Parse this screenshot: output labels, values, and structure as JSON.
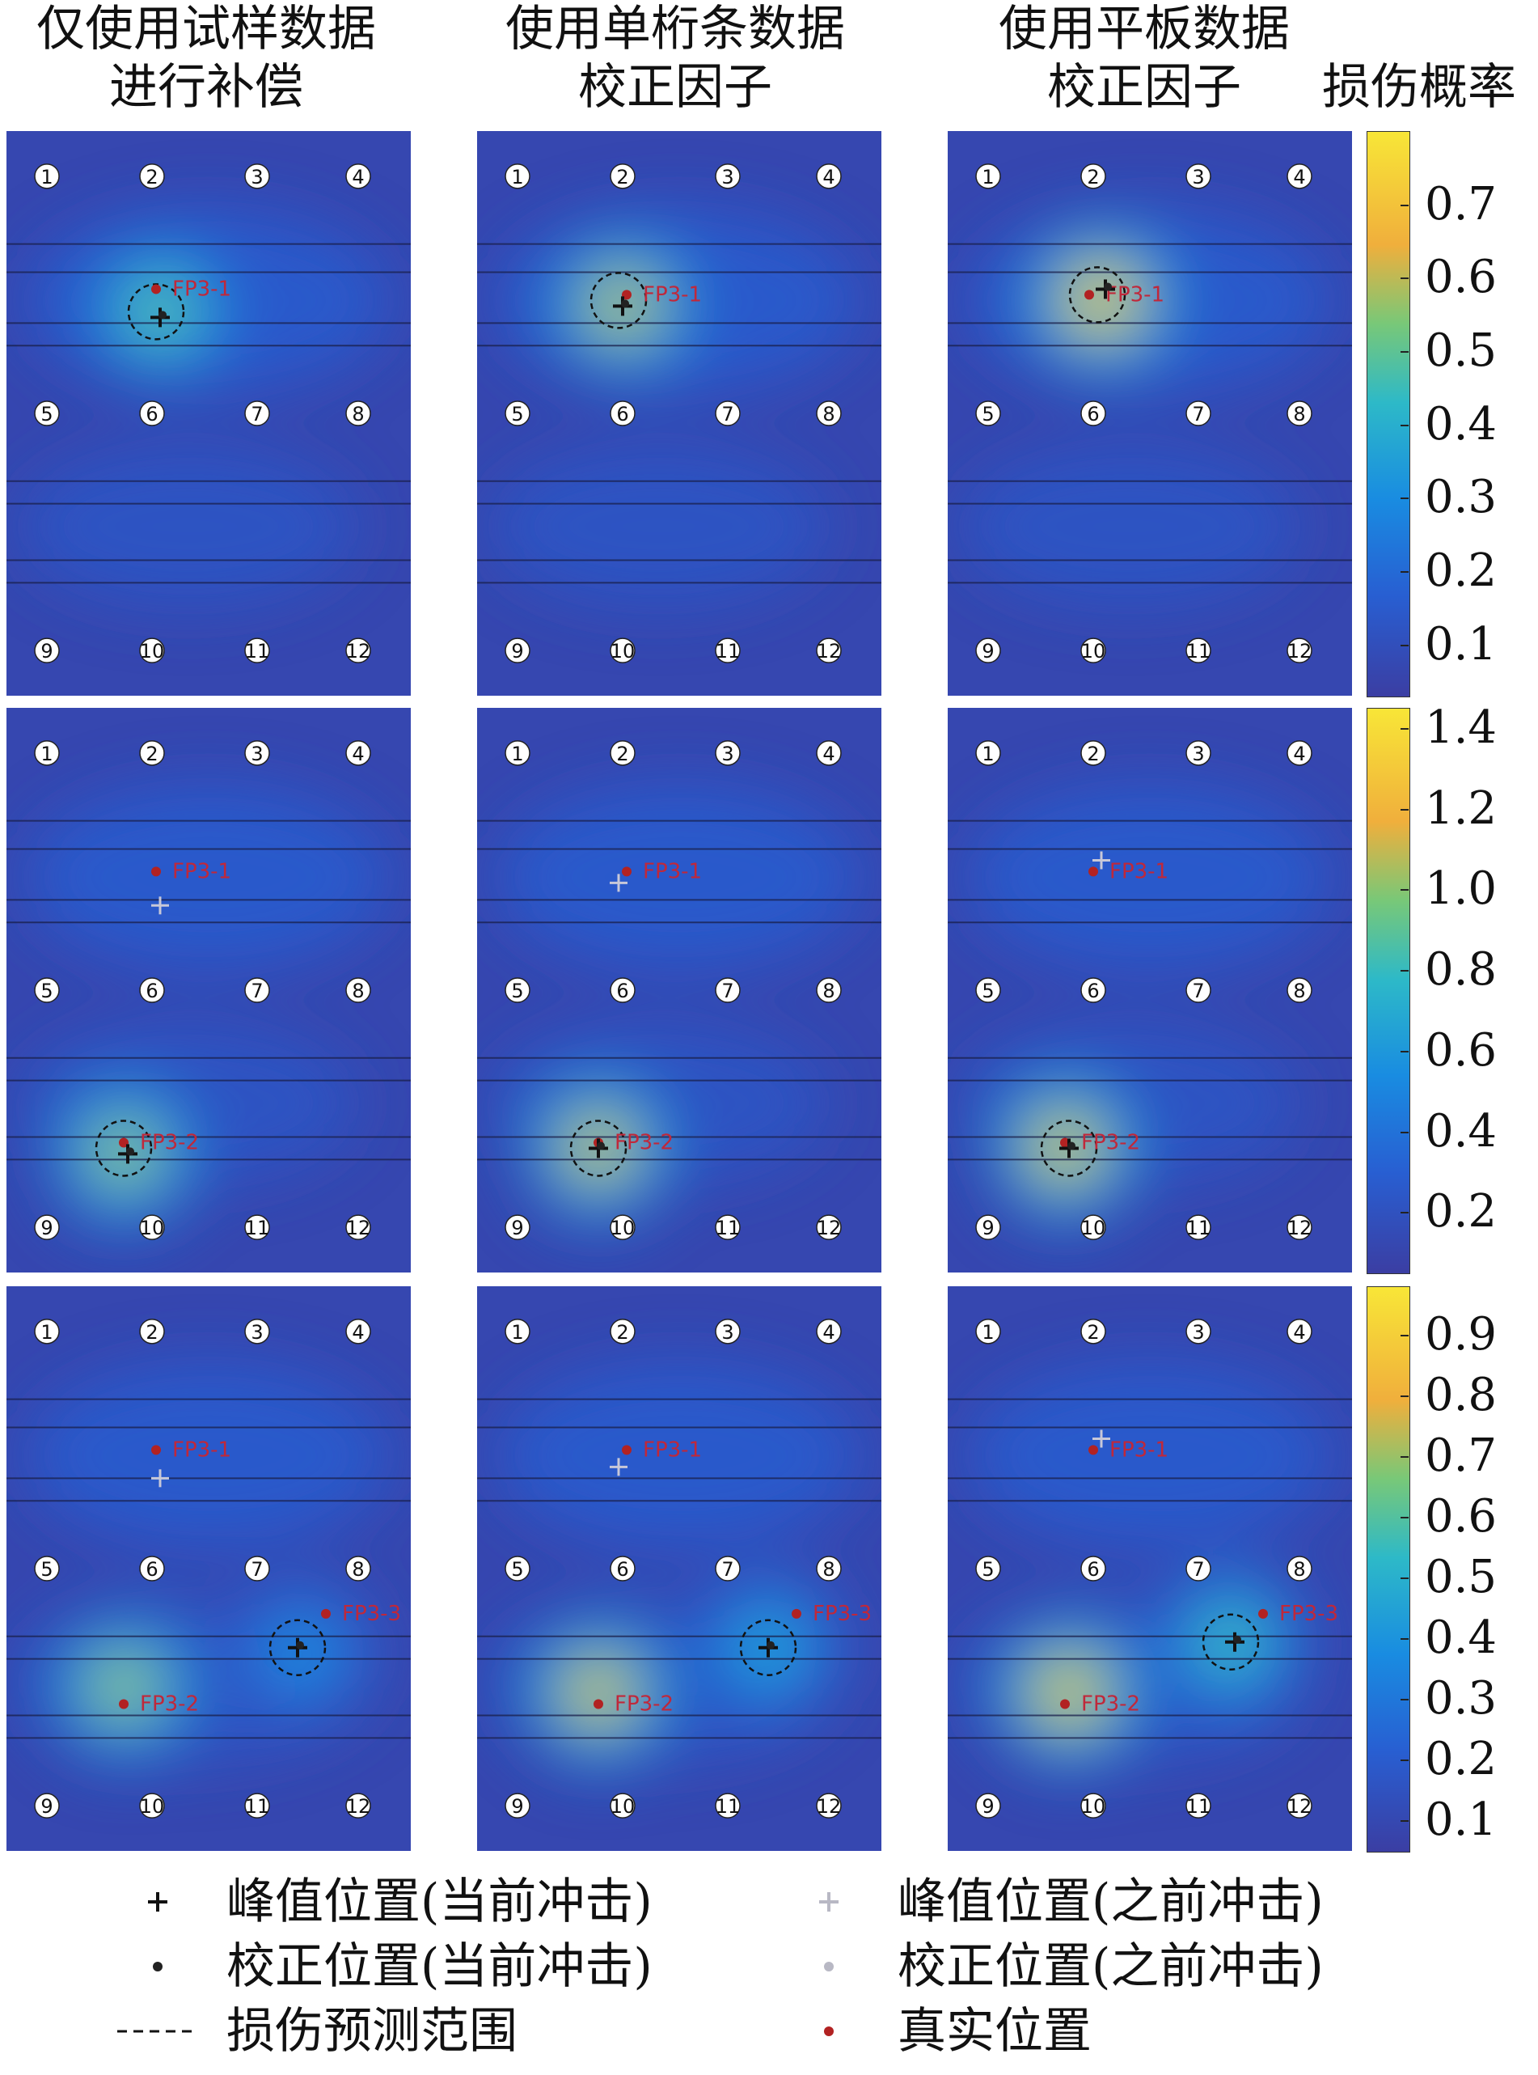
{
  "column_titles": [
    "仅使用试样数据\n进行补偿",
    "使用单桁条数据\n校正因子",
    "使用平板数据\n校正因子"
  ],
  "colorbar_title": "损伤概率",
  "sensor_labels": [
    "1",
    "2",
    "3",
    "4",
    "5",
    "6",
    "7",
    "8",
    "9",
    "10",
    "11",
    "12"
  ],
  "colors": {
    "low": "#3b3ea3",
    "mid": "#2fb6c8",
    "high": "#f2b03a",
    "peak": "#f7e33b",
    "true_position": "#b22222",
    "label_red": "#c0283a"
  },
  "chart_data": {
    "type": "heatmap",
    "rows": [
      {
        "colorbar_ticks": [
          "0.7",
          "0.6",
          "0.5",
          "0.4",
          "0.3",
          "0.2",
          "0.1"
        ],
        "colorbar_range": [
          0.03,
          0.8
        ],
        "panels": [
          {
            "hotspots": [
              {
                "x": 0.38,
                "y": 0.32,
                "v": 0.52
              }
            ],
            "markers": [
              {
                "label": "FP3-1",
                "x": 0.37,
                "y": 0.28
              }
            ],
            "circle": {
              "x": 0.37,
              "y": 0.32
            },
            "peak_current": {
              "x": 0.38,
              "y": 0.33
            }
          },
          {
            "hotspots": [
              {
                "x": 0.36,
                "y": 0.31,
                "v": 0.62
              }
            ],
            "markers": [
              {
                "label": "FP3-1",
                "x": 0.37,
                "y": 0.29
              }
            ],
            "circle": {
              "x": 0.35,
              "y": 0.3
            },
            "peak_current": {
              "x": 0.36,
              "y": 0.31
            }
          },
          {
            "hotspots": [
              {
                "x": 0.38,
                "y": 0.3,
                "v": 0.72
              }
            ],
            "markers": [
              {
                "label": "FP3-1",
                "x": 0.35,
                "y": 0.29
              }
            ],
            "circle": {
              "x": 0.37,
              "y": 0.29
            },
            "peak_current": {
              "x": 0.39,
              "y": 0.28
            }
          }
        ]
      },
      {
        "colorbar_ticks": [
          "1.4",
          "1.2",
          "1.0",
          "0.8",
          "0.6",
          "0.4",
          "0.2"
        ],
        "colorbar_range": [
          0.05,
          1.45
        ],
        "panels": [
          {
            "hotspots": [
              {
                "x": 0.29,
                "y": 0.79,
                "v": 1.05
              }
            ],
            "markers": [
              {
                "label": "FP3-1",
                "x": 0.37,
                "y": 0.29
              },
              {
                "label": "FP3-2",
                "x": 0.29,
                "y": 0.77
              }
            ],
            "circle": {
              "x": 0.29,
              "y": 0.78
            },
            "peak_current": {
              "x": 0.3,
              "y": 0.79
            },
            "peak_previous": {
              "x": 0.38,
              "y": 0.35
            }
          },
          {
            "hotspots": [
              {
                "x": 0.3,
                "y": 0.78,
                "v": 1.15
              }
            ],
            "markers": [
              {
                "label": "FP3-1",
                "x": 0.37,
                "y": 0.29
              },
              {
                "label": "FP3-2",
                "x": 0.3,
                "y": 0.77
              }
            ],
            "circle": {
              "x": 0.3,
              "y": 0.78
            },
            "peak_current": {
              "x": 0.3,
              "y": 0.78
            },
            "peak_previous": {
              "x": 0.35,
              "y": 0.31
            }
          },
          {
            "hotspots": [
              {
                "x": 0.29,
                "y": 0.78,
                "v": 1.2
              }
            ],
            "markers": [
              {
                "label": "FP3-1",
                "x": 0.36,
                "y": 0.29
              },
              {
                "label": "FP3-2",
                "x": 0.29,
                "y": 0.77
              }
            ],
            "circle": {
              "x": 0.3,
              "y": 0.78
            },
            "peak_current": {
              "x": 0.3,
              "y": 0.78
            },
            "peak_previous": {
              "x": 0.38,
              "y": 0.27
            }
          }
        ]
      },
      {
        "colorbar_ticks": [
          "0.9",
          "0.8",
          "0.7",
          "0.6",
          "0.5",
          "0.4",
          "0.3",
          "0.2",
          "0.1"
        ],
        "colorbar_range": [
          0.05,
          0.98
        ],
        "panels": [
          {
            "hotspots": [
              {
                "x": 0.29,
                "y": 0.71,
                "v": 0.72
              },
              {
                "x": 0.73,
                "y": 0.65,
                "v": 0.4
              }
            ],
            "markers": [
              {
                "label": "FP3-1",
                "x": 0.37,
                "y": 0.29
              },
              {
                "label": "FP3-2",
                "x": 0.29,
                "y": 0.74
              },
              {
                "label": "FP3-3",
                "x": 0.79,
                "y": 0.58
              }
            ],
            "circle": {
              "x": 0.72,
              "y": 0.64
            },
            "peak_current": {
              "x": 0.72,
              "y": 0.64
            },
            "peak_previous": {
              "x": 0.38,
              "y": 0.34
            }
          },
          {
            "hotspots": [
              {
                "x": 0.3,
                "y": 0.72,
                "v": 0.8
              },
              {
                "x": 0.72,
                "y": 0.64,
                "v": 0.48
              }
            ],
            "markers": [
              {
                "label": "FP3-1",
                "x": 0.37,
                "y": 0.29
              },
              {
                "label": "FP3-2",
                "x": 0.3,
                "y": 0.74
              },
              {
                "label": "FP3-3",
                "x": 0.79,
                "y": 0.58
              }
            ],
            "circle": {
              "x": 0.72,
              "y": 0.64
            },
            "peak_current": {
              "x": 0.72,
              "y": 0.64
            },
            "peak_previous": {
              "x": 0.35,
              "y": 0.32
            }
          },
          {
            "hotspots": [
              {
                "x": 0.3,
                "y": 0.72,
                "v": 0.85
              },
              {
                "x": 0.7,
                "y": 0.63,
                "v": 0.58
              }
            ],
            "markers": [
              {
                "label": "FP3-1",
                "x": 0.36,
                "y": 0.29
              },
              {
                "label": "FP3-2",
                "x": 0.29,
                "y": 0.74
              },
              {
                "label": "FP3-3",
                "x": 0.78,
                "y": 0.58
              }
            ],
            "circle": {
              "x": 0.7,
              "y": 0.63
            },
            "peak_current": {
              "x": 0.71,
              "y": 0.63
            },
            "peak_previous": {
              "x": 0.38,
              "y": 0.27
            }
          }
        ]
      }
    ]
  },
  "legend": [
    {
      "symbol": "plus-dark",
      "label": "峰值位置(当前冲击)"
    },
    {
      "symbol": "plus-light",
      "label": "峰值位置(之前冲击)"
    },
    {
      "symbol": "dot-dark",
      "label": "校正位置(当前冲击)"
    },
    {
      "symbol": "dot-light",
      "label": "校正位置(之前冲击)"
    },
    {
      "symbol": "dash",
      "label": "损伤预测范围"
    },
    {
      "symbol": "dot-red",
      "label": "真实位置"
    }
  ]
}
